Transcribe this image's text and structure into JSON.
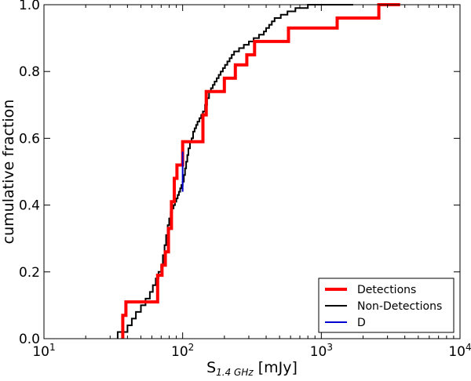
{
  "chart_data": {
    "type": "line",
    "xscale": "log",
    "xlim": [
      10,
      10000
    ],
    "ylim": [
      0.0,
      1.0
    ],
    "xlabel_base": "S",
    "xlabel_subscript": "1.4 GHz",
    "xlabel_unit": " [mJy]",
    "ylabel": "cumulative fraction",
    "grid": false,
    "legend_position": "lower-right",
    "x_ticks": [
      {
        "value": 10,
        "base": "10",
        "exp": "1"
      },
      {
        "value": 100,
        "base": "10",
        "exp": "2"
      },
      {
        "value": 1000,
        "base": "10",
        "exp": "3"
      },
      {
        "value": 10000,
        "base": "10",
        "exp": "4"
      }
    ],
    "y_ticks": [
      {
        "value": 0.0,
        "label": "0.0"
      },
      {
        "value": 0.2,
        "label": "0.2"
      },
      {
        "value": 0.4,
        "label": "0.4"
      },
      {
        "value": 0.6,
        "label": "0.6"
      },
      {
        "value": 0.8,
        "label": "0.8"
      },
      {
        "value": 1.0,
        "label": "1.0"
      }
    ],
    "series": [
      {
        "name": "Non-Detections",
        "color": "#000000",
        "step_x": [
          34,
          34,
          40,
          43,
          46,
          50,
          54,
          58,
          61,
          64,
          67,
          70,
          72,
          74,
          76,
          78,
          80,
          82,
          84,
          86,
          88,
          90,
          92,
          94,
          96,
          98,
          100,
          102,
          104,
          106,
          108,
          110,
          113,
          116,
          119,
          122,
          125,
          128,
          132,
          136,
          140,
          145,
          150,
          155,
          160,
          165,
          170,
          176,
          182,
          188,
          195,
          202,
          210,
          218,
          226,
          235,
          245,
          255,
          265,
          276,
          288,
          300,
          312,
          325,
          340,
          355,
          370,
          385,
          400,
          420,
          440,
          460,
          480,
          510,
          540,
          570,
          600,
          650,
          720,
          800,
          900,
          1000,
          1700
        ],
        "step_y": [
          0.0,
          0.02,
          0.04,
          0.06,
          0.08,
          0.1,
          0.12,
          0.14,
          0.16,
          0.18,
          0.2,
          0.22,
          0.25,
          0.28,
          0.31,
          0.34,
          0.36,
          0.38,
          0.39,
          0.4,
          0.41,
          0.42,
          0.43,
          0.44,
          0.45,
          0.46,
          0.47,
          0.49,
          0.51,
          0.53,
          0.55,
          0.57,
          0.59,
          0.6,
          0.62,
          0.63,
          0.64,
          0.65,
          0.66,
          0.67,
          0.68,
          0.7,
          0.72,
          0.74,
          0.75,
          0.76,
          0.77,
          0.78,
          0.79,
          0.8,
          0.81,
          0.82,
          0.83,
          0.84,
          0.85,
          0.86,
          0.86,
          0.87,
          0.87,
          0.88,
          0.88,
          0.89,
          0.89,
          0.9,
          0.9,
          0.91,
          0.91,
          0.92,
          0.93,
          0.94,
          0.95,
          0.96,
          0.96,
          0.97,
          0.97,
          0.98,
          0.98,
          0.99,
          0.99,
          1.0,
          1.0,
          1.0,
          1.0
        ]
      },
      {
        "name": "Detections",
        "color": "#ff0000",
        "step_x": [
          37,
          37,
          39,
          60,
          66,
          71,
          75,
          79,
          83,
          87,
          91,
          100,
          130,
          140,
          148,
          160,
          200,
          240,
          290,
          330,
          580,
          1300,
          2600,
          3700
        ],
        "step_y": [
          0.0,
          0.07,
          0.11,
          0.11,
          0.19,
          0.22,
          0.26,
          0.33,
          0.41,
          0.48,
          0.52,
          0.59,
          0.59,
          0.67,
          0.74,
          0.74,
          0.78,
          0.82,
          0.85,
          0.89,
          0.93,
          0.96,
          1.0,
          1.0
        ]
      },
      {
        "name": "D",
        "color": "#0000cc",
        "segment": {
          "x": 100,
          "y_start": 0.44,
          "y_end": 0.56
        }
      }
    ]
  }
}
